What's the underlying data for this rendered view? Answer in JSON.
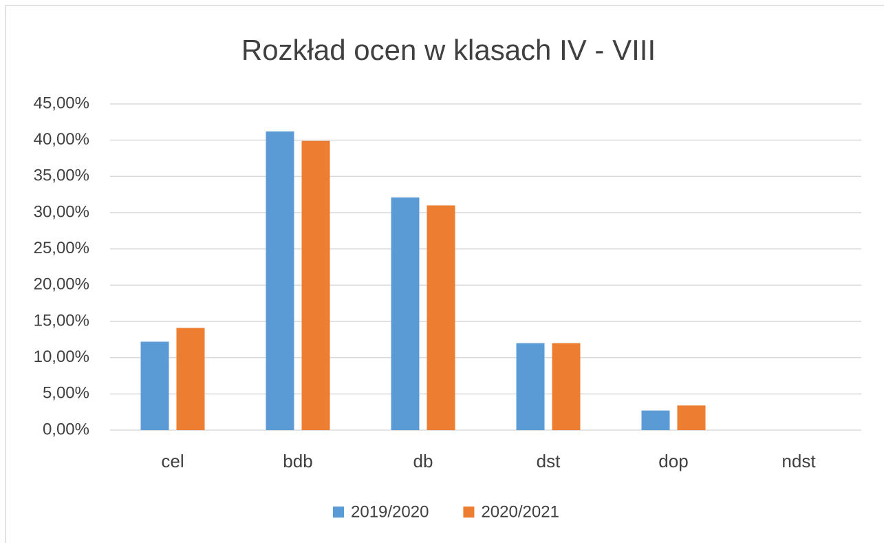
{
  "chart_data": {
    "type": "bar",
    "title": "Rozkład ocen w klasach IV - VIII",
    "categories": [
      "cel",
      "bdb",
      "db",
      "dst",
      "dop",
      "ndst"
    ],
    "series": [
      {
        "name": "2019/2020",
        "color": "#5b9bd5",
        "values": [
          12.2,
          41.2,
          32.1,
          12.0,
          2.7,
          0
        ]
      },
      {
        "name": "2020/2021",
        "color": "#ed7d31",
        "values": [
          14.1,
          39.9,
          31.0,
          12.0,
          3.4,
          0
        ]
      }
    ],
    "ylim": [
      0,
      45
    ],
    "yticks": [
      {
        "value": 0,
        "label": "0,00%"
      },
      {
        "value": 5,
        "label": "5,00%"
      },
      {
        "value": 10,
        "label": "10,00%"
      },
      {
        "value": 15,
        "label": "15,00%"
      },
      {
        "value": 20,
        "label": "20,00%"
      },
      {
        "value": 25,
        "label": "25,00%"
      },
      {
        "value": 30,
        "label": "30,00%"
      },
      {
        "value": 35,
        "label": "35,00%"
      },
      {
        "value": 40,
        "label": "40,00%"
      },
      {
        "value": 45,
        "label": "45,00%"
      }
    ],
    "grid": true,
    "legend": "bottom"
  }
}
